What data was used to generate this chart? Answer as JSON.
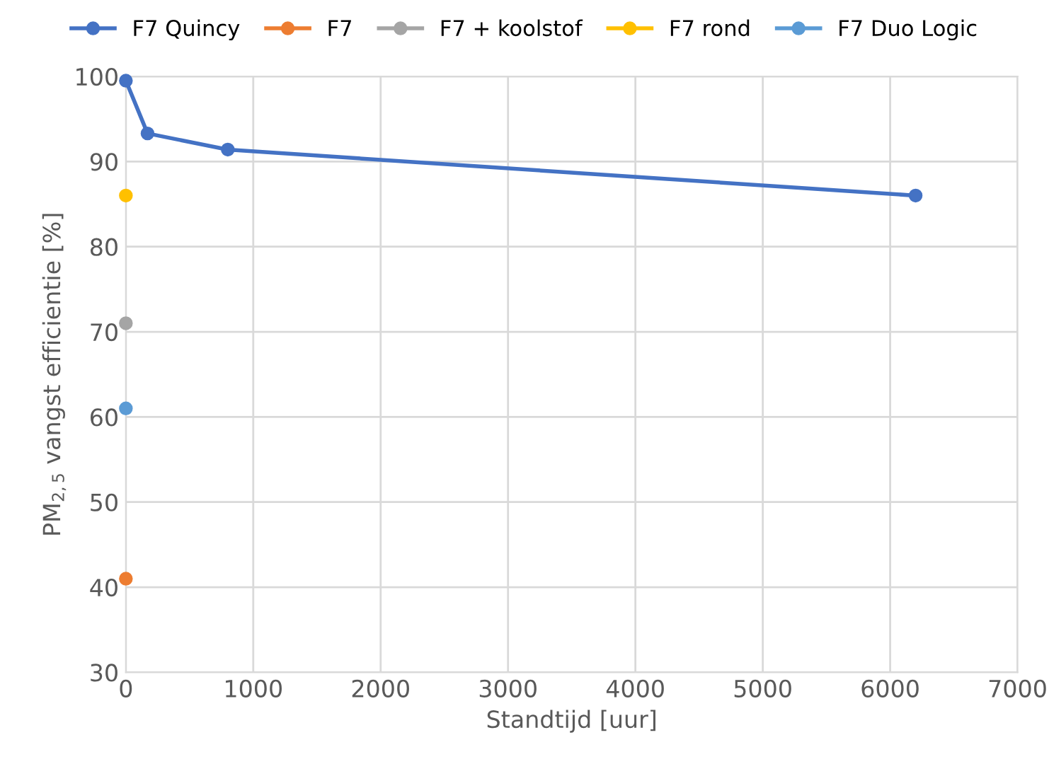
{
  "chart_data": {
    "type": "line",
    "xlabel": "Standtijd [uur]",
    "ylabel": "PM$_{2,5}$ vangst efficientie [%]",
    "xlim": [
      0,
      7000
    ],
    "xticks": [
      0,
      1000,
      2000,
      3000,
      4000,
      5000,
      6000,
      7000
    ],
    "ylim": [
      30,
      100
    ],
    "yticks": [
      30,
      40,
      50,
      60,
      70,
      80,
      90,
      100
    ],
    "grid": true,
    "legend": "top",
    "marker": "circle",
    "line_style": "solid",
    "series": [
      {
        "name": "F7 Quincy",
        "color": "#4472c4",
        "x": [
          0,
          170,
          800,
          6200
        ],
        "values": [
          99.5,
          93.3,
          91.4,
          86
        ]
      },
      {
        "name": "F7",
        "color": "#ed7d31",
        "x": [
          0
        ],
        "values": [
          41
        ]
      },
      {
        "name": "F7 + koolstof",
        "color": "#a5a5a5",
        "x": [
          0
        ],
        "values": [
          71
        ]
      },
      {
        "name": "F7 rond",
        "color": "#ffc000",
        "x": [
          0
        ],
        "values": [
          86
        ]
      },
      {
        "name": "F7 Duo Logic",
        "color": "#5b9bd5",
        "x": [
          0
        ],
        "values": [
          61
        ]
      }
    ]
  }
}
